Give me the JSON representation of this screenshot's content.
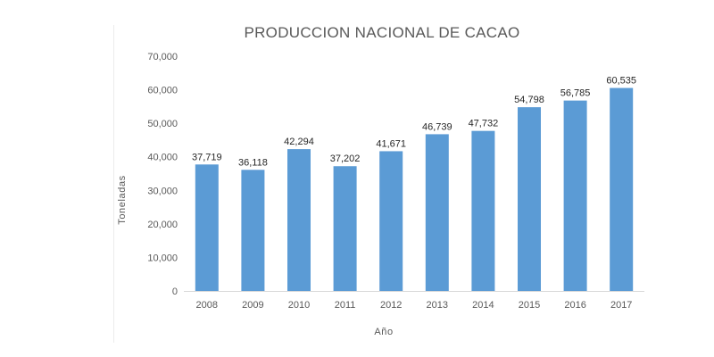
{
  "chart_data": {
    "type": "bar",
    "title": "PRODUCCION NACIONAL DE CACAO",
    "xlabel": "Año",
    "ylabel": "Toneladas",
    "categories": [
      "2008",
      "2009",
      "2010",
      "2011",
      "2012",
      "2013",
      "2014",
      "2015",
      "2016",
      "2017"
    ],
    "values": [
      37719,
      36118,
      42294,
      37202,
      41671,
      46739,
      47732,
      54798,
      56785,
      60535
    ],
    "data_labels": [
      "37,719",
      "36,118",
      "42,294",
      "37,202",
      "41,671",
      "46,739",
      "47,732",
      "54,798",
      "56,785",
      "60,535"
    ],
    "ylim": [
      0,
      70000
    ],
    "yticks": [
      0,
      10000,
      20000,
      30000,
      40000,
      50000,
      60000,
      70000
    ],
    "ytick_labels": [
      "0",
      "10,000",
      "20,000",
      "30,000",
      "40,000",
      "50,000",
      "60,000",
      "70,000"
    ],
    "grid": false,
    "legend": "none",
    "colors": {
      "bar": "#5b9bd5",
      "axis_line": "#d9d9d9",
      "title": "#595959",
      "tick": "#595959",
      "data_label": "#262626"
    }
  }
}
